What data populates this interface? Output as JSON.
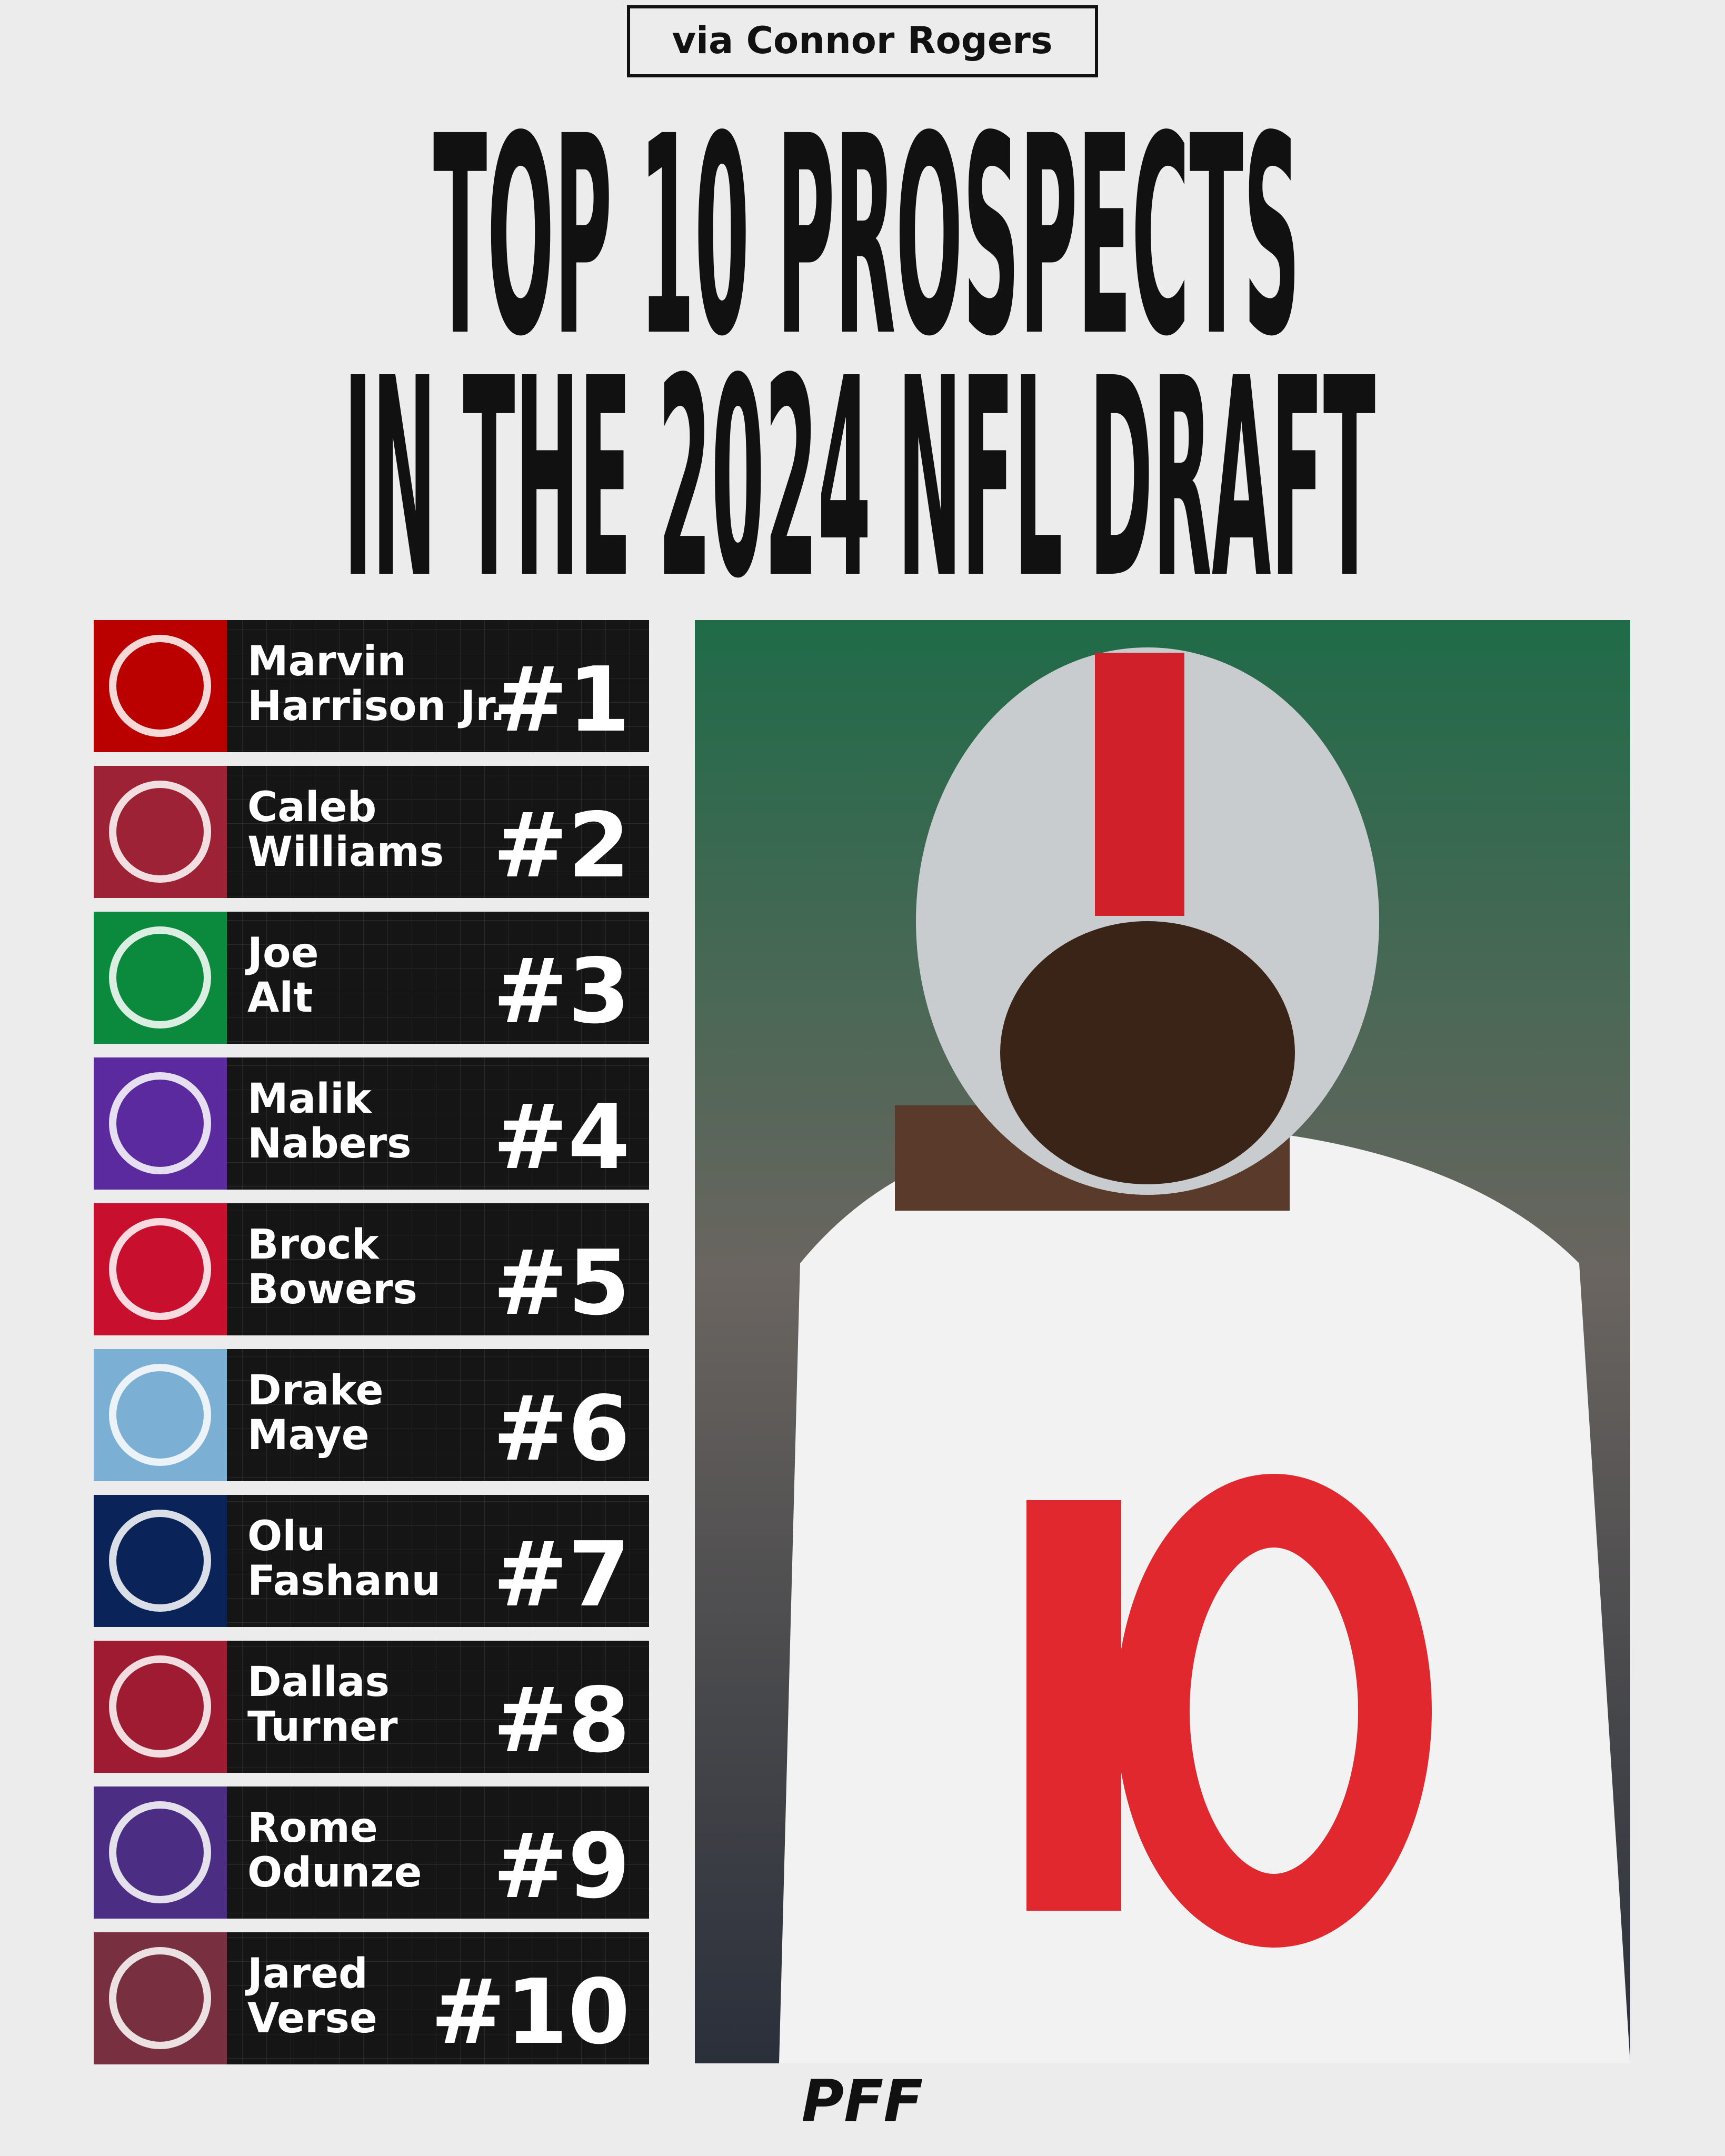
{
  "header": {
    "credit": "via Connor Rogers",
    "title": [
      "TOP 10 PROSPECTS",
      "IN THE 2024 NFL DRAFT"
    ]
  },
  "prospects": [
    {
      "first": "Marvin",
      "last": "Harrison Jr.",
      "rank": "#1",
      "color": "#bb0000"
    },
    {
      "first": "Caleb",
      "last": "Williams",
      "rank": "#2",
      "color": "#9d2235"
    },
    {
      "first": "Joe",
      "last": "Alt",
      "rank": "#3",
      "color": "#0b8a3e"
    },
    {
      "first": "Malik",
      "last": "Nabers",
      "rank": "#4",
      "color": "#5b2a9e"
    },
    {
      "first": "Brock",
      "last": "Bowers",
      "rank": "#5",
      "color": "#c8102e"
    },
    {
      "first": "Drake",
      "last": "Maye",
      "rank": "#6",
      "color": "#7bafd4"
    },
    {
      "first": "Olu",
      "last": "Fashanu",
      "rank": "#7",
      "color": "#0a2459"
    },
    {
      "first": "Dallas",
      "last": "Turner",
      "rank": "#8",
      "color": "#9e1b32"
    },
    {
      "first": "Rome",
      "last": "Odunze",
      "rank": "#9",
      "color": "#4b2e83"
    },
    {
      "first": "Jared",
      "last": "Verse",
      "rank": "#10",
      "color": "#782f40"
    }
  ],
  "footer": {
    "brand": "PFF"
  }
}
